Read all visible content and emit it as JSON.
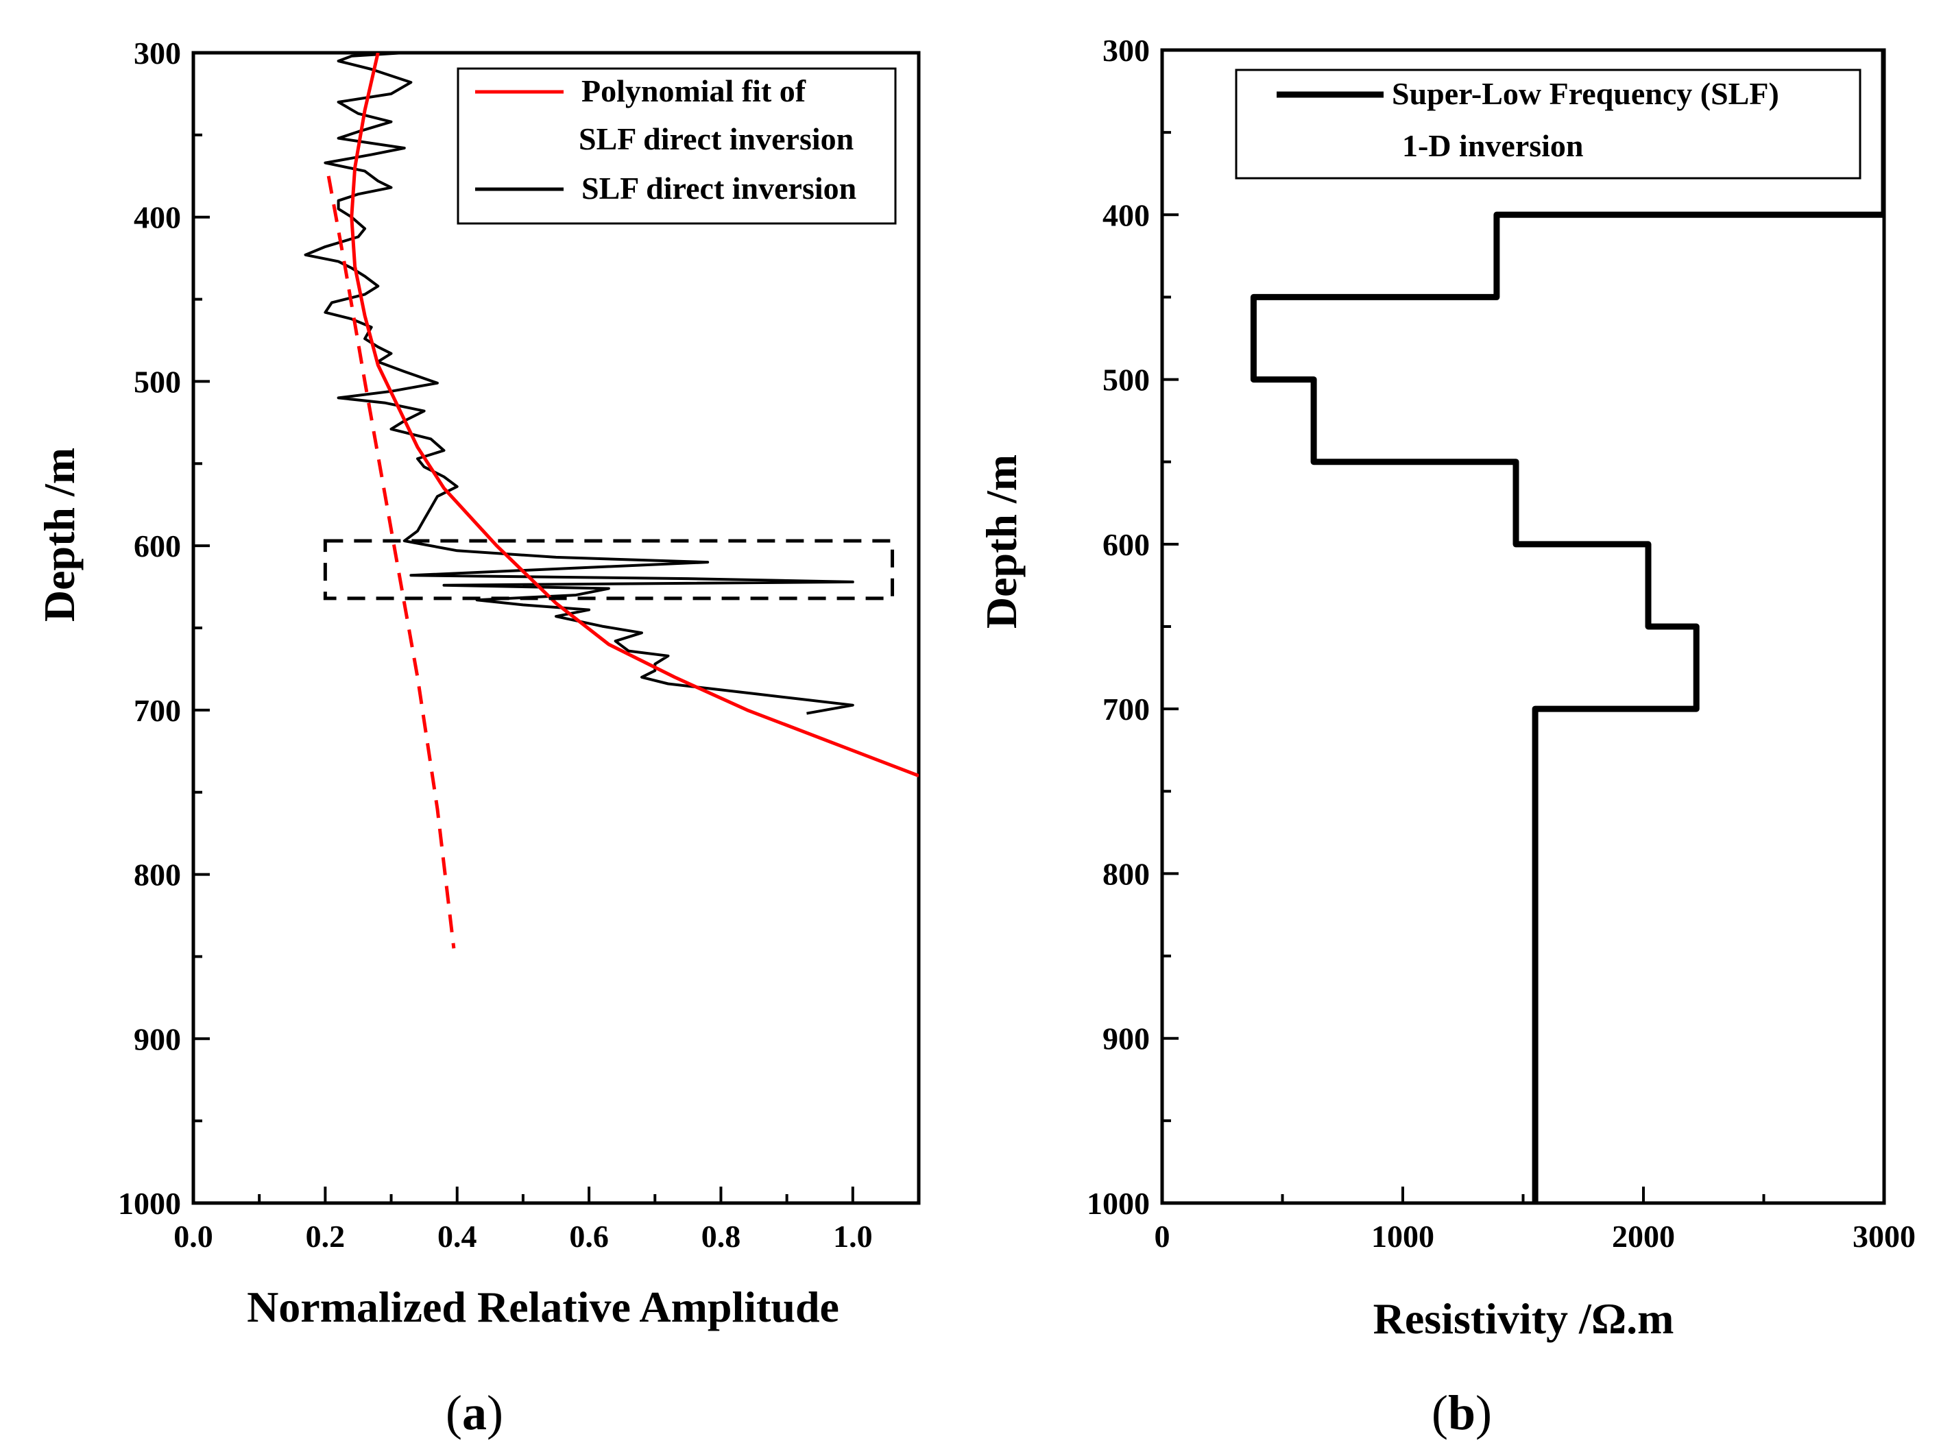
{
  "chart_data": [
    {
      "panel_label": "a",
      "type": "line",
      "xlabel": "Normalized Relative Amplitude",
      "ylabel": "Depth /m",
      "xlim": [
        0.0,
        1.1
      ],
      "ylim": [
        1000,
        300
      ],
      "y_inverted": true,
      "x_ticks": [
        "0.0",
        "0.2",
        "0.4",
        "0.6",
        "0.8",
        "1.0"
      ],
      "y_ticks": [
        "300",
        "400",
        "500",
        "600",
        "700",
        "800",
        "900",
        "1000"
      ],
      "legend_position": "top-right",
      "legend": [
        {
          "label_lines": [
            "Polynomial fit of",
            "SLF direct inversion"
          ],
          "color": "#ff0000"
        },
        {
          "label_lines": [
            "SLF direct inversion"
          ],
          "color": "#000000"
        }
      ],
      "series": [
        {
          "name": "SLF direct inversion",
          "color": "#000000",
          "points": [
            [
              0.32,
              300
            ],
            [
              0.24,
              302
            ],
            [
              0.22,
              305
            ],
            [
              0.27,
              310
            ],
            [
              0.33,
              318
            ],
            [
              0.3,
              325
            ],
            [
              0.22,
              330
            ],
            [
              0.25,
              337
            ],
            [
              0.3,
              342
            ],
            [
              0.25,
              348
            ],
            [
              0.22,
              352
            ],
            [
              0.32,
              358
            ],
            [
              0.27,
              362
            ],
            [
              0.2,
              367
            ],
            [
              0.26,
              372
            ],
            [
              0.28,
              378
            ],
            [
              0.3,
              382
            ],
            [
              0.25,
              386
            ],
            [
              0.22,
              390
            ],
            [
              0.22,
              395
            ],
            [
              0.24,
              400
            ],
            [
              0.26,
              407
            ],
            [
              0.25,
              412
            ],
            [
              0.2,
              418
            ],
            [
              0.17,
              423
            ],
            [
              0.22,
              427
            ],
            [
              0.24,
              431
            ],
            [
              0.26,
              436
            ],
            [
              0.28,
              442
            ],
            [
              0.26,
              447
            ],
            [
              0.21,
              452
            ],
            [
              0.2,
              458
            ],
            [
              0.24,
              462
            ],
            [
              0.27,
              467
            ],
            [
              0.26,
              474
            ],
            [
              0.28,
              479
            ],
            [
              0.3,
              483
            ],
            [
              0.28,
              488
            ],
            [
              0.32,
              494
            ],
            [
              0.37,
              501
            ],
            [
              0.3,
              506
            ],
            [
              0.22,
              510
            ],
            [
              0.29,
              513
            ],
            [
              0.35,
              518
            ],
            [
              0.32,
              524
            ],
            [
              0.3,
              529
            ],
            [
              0.36,
              535
            ],
            [
              0.38,
              542
            ],
            [
              0.34,
              547
            ],
            [
              0.35,
              552
            ],
            [
              0.38,
              558
            ],
            [
              0.4,
              564
            ],
            [
              0.37,
              570
            ],
            [
              0.36,
              577
            ],
            [
              0.35,
              584
            ],
            [
              0.34,
              591
            ],
            [
              0.32,
              597
            ],
            [
              0.4,
              603
            ],
            [
              0.55,
              607
            ],
            [
              0.78,
              610
            ],
            [
              0.33,
              618
            ],
            [
              0.75,
              620
            ],
            [
              1.0,
              622
            ],
            [
              0.38,
              624
            ],
            [
              0.63,
              626
            ],
            [
              0.58,
              630
            ],
            [
              0.43,
              633
            ],
            [
              0.5,
              636
            ],
            [
              0.6,
              639
            ],
            [
              0.55,
              643
            ],
            [
              0.62,
              649
            ],
            [
              0.68,
              653
            ],
            [
              0.64,
              658
            ],
            [
              0.66,
              664
            ],
            [
              0.72,
              667
            ],
            [
              0.7,
              672
            ],
            [
              0.7,
              676
            ],
            [
              0.68,
              680
            ],
            [
              0.72,
              684
            ],
            [
              0.85,
              690
            ],
            [
              1.0,
              697
            ],
            [
              0.93,
              702
            ]
          ]
        },
        {
          "name": "Polynomial fit of SLF direct inversion",
          "color": "#ff0000",
          "dash": "solid",
          "points": [
            [
              0.28,
              300
            ],
            [
              0.26,
              335
            ],
            [
              0.245,
              370
            ],
            [
              0.24,
              400
            ],
            [
              0.245,
              430
            ],
            [
              0.26,
              460
            ],
            [
              0.28,
              490
            ],
            [
              0.31,
              515
            ],
            [
              0.34,
              540
            ],
            [
              0.38,
              565
            ],
            [
              0.46,
              600
            ],
            [
              0.55,
              635
            ],
            [
              0.63,
              660
            ],
            [
              0.73,
              680
            ],
            [
              0.84,
              700
            ],
            [
              0.97,
              720
            ],
            [
              1.1,
              740
            ]
          ]
        },
        {
          "name": "Polynomial fit of SLF direct inversion (extrapolated)",
          "color": "#ff0000",
          "dash": "dashed",
          "points": [
            [
              0.205,
              375
            ],
            [
              0.23,
              430
            ],
            [
              0.26,
              500
            ],
            [
              0.3,
              590
            ],
            [
              0.34,
              680
            ],
            [
              0.37,
              760
            ],
            [
              0.395,
              845
            ]
          ]
        }
      ],
      "annotation_box": {
        "x0": 0.2,
        "x1": 1.06,
        "y0": 597,
        "y1": 632,
        "style": "dashed"
      }
    },
    {
      "panel_label": "b",
      "type": "line",
      "xlabel": "Resistivity /Ω.m",
      "ylabel": "Depth /m",
      "xlim": [
        0,
        3000
      ],
      "ylim": [
        1000,
        300
      ],
      "y_inverted": true,
      "x_ticks": [
        "0",
        "1000",
        "2000",
        "3000"
      ],
      "y_ticks": [
        "300",
        "400",
        "500",
        "600",
        "700",
        "800",
        "900",
        "1000"
      ],
      "legend_position": "top-right",
      "legend": [
        {
          "label_lines": [
            "Super-Low Frequency (SLF)",
            "1-D inversion"
          ],
          "color": "#000000"
        }
      ],
      "series": [
        {
          "name": "Super-Low Frequency (SLF) 1-D inversion",
          "color": "#000000",
          "step": true,
          "points": [
            [
              3000,
              300
            ],
            [
              3000,
              400
            ],
            [
              1390,
              400
            ],
            [
              1390,
              450
            ],
            [
              380,
              450
            ],
            [
              380,
              500
            ],
            [
              630,
              500
            ],
            [
              630,
              550
            ],
            [
              1470,
              550
            ],
            [
              1470,
              600
            ],
            [
              2020,
              600
            ],
            [
              2020,
              650
            ],
            [
              2220,
              650
            ],
            [
              2220,
              700
            ],
            [
              1550,
              700
            ],
            [
              1550,
              1000
            ]
          ]
        }
      ]
    }
  ]
}
